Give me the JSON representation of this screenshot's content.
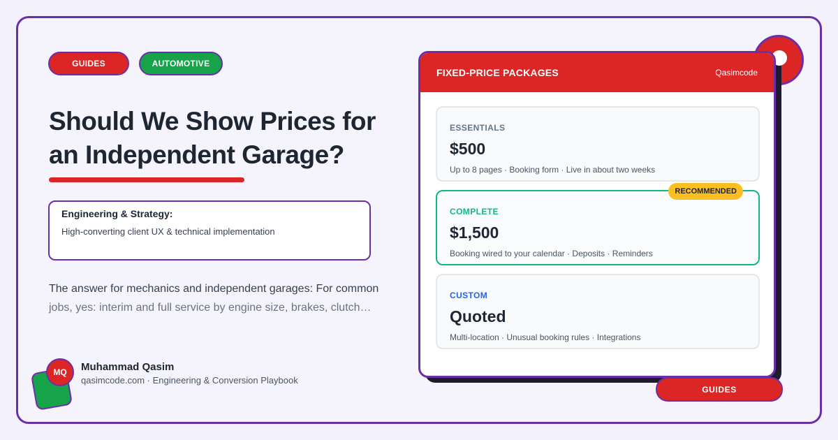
{
  "tags": [
    {
      "label": "GUIDES",
      "color": "#dc2626"
    },
    {
      "label": "AUTOMOTIVE",
      "color": "#16a34a"
    }
  ],
  "article": {
    "title": "Should We Show Prices for an Independent Garage?",
    "info_heading": "Engineering & Strategy:",
    "info_text": "High-converting client UX & technical implementation",
    "description_main": "The answer for mechanics and independent garages: For common",
    "description_fade": "jobs, yes: interim and full service by engine size, brakes, clutch…"
  },
  "author": {
    "initials": "MQ",
    "name": "Muhammad Qasim",
    "meta": "qasimcode.com · Engineering & Conversion Playbook"
  },
  "card": {
    "title": "FIXED-PRICE PACKAGES",
    "brand": "Qasimcode",
    "packages": [
      {
        "label": "ESSENTIALS",
        "price": "$500",
        "desc": "Up to 8 pages · Booking form · Live in about two weeks",
        "label_color": "#64748b"
      },
      {
        "label": "COMPLETE",
        "price": "$1,500",
        "desc": "Booking wired to your calendar · Deposits · Reminders",
        "label_color": "#10b981",
        "badge": "RECOMMENDED"
      },
      {
        "label": "CUSTOM",
        "price": "Quoted",
        "desc": "Multi-location · Unusual booking rules · Integrations",
        "label_color": "#2563eb"
      }
    ]
  },
  "footer_tag": "GUIDES",
  "colors": {
    "accent_red": "#dc2626",
    "accent_green": "#16a34a",
    "border_purple": "#6b2fa8",
    "badge_yellow": "#fbbf24"
  }
}
